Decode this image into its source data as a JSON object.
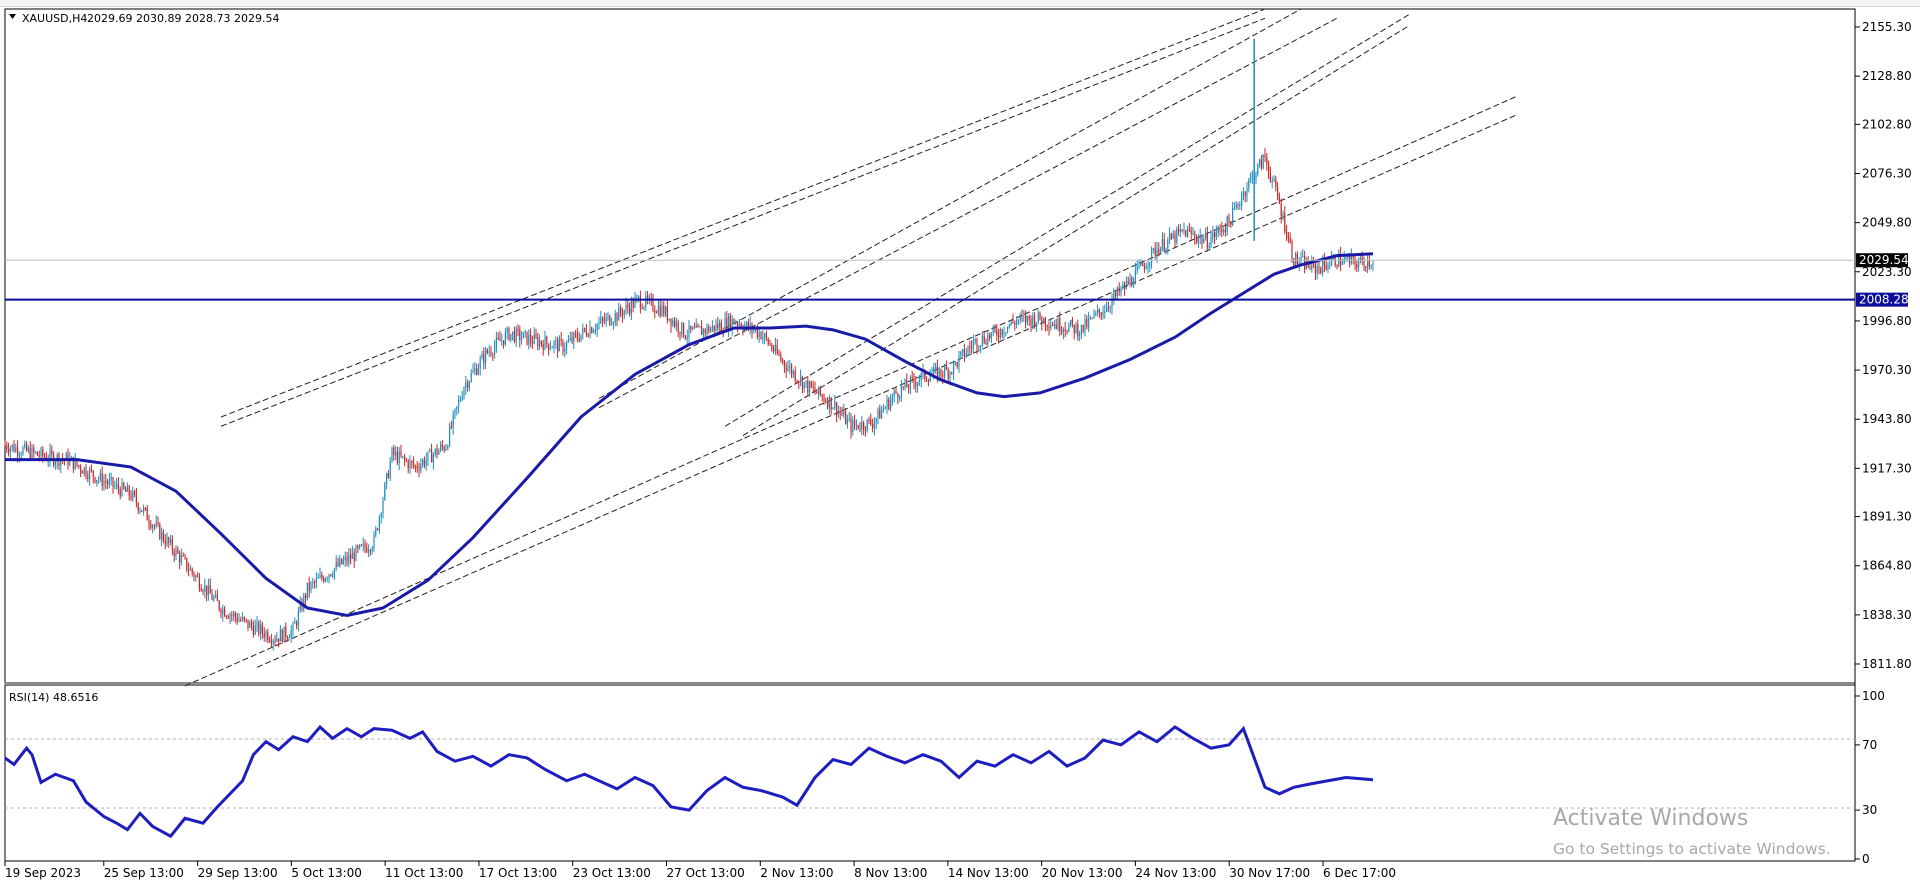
{
  "chart_data": [
    {
      "type": "candlestick",
      "title": "XAUUSD,H4",
      "ohlc_label": "2029.69 2030.89 2028.73 2029.54",
      "ylim": [
        1800,
        2160
      ],
      "y_ticks": [
        "2155.30",
        "2128.80",
        "2102.80",
        "2076.30",
        "2049.80",
        "2023.30",
        "1996.80",
        "1970.30",
        "1943.80",
        "1917.30",
        "1891.30",
        "1864.80",
        "1838.30",
        "1811.80"
      ],
      "x_ticks": [
        "19 Sep 2023",
        "25 Sep 13:00",
        "29 Sep 13:00",
        "5 Oct 13:00",
        "11 Oct 13:00",
        "17 Oct 13:00",
        "23 Oct 13:00",
        "27 Oct 13:00",
        "2 Nov 13:00",
        "8 Nov 13:00",
        "14 Nov 13:00",
        "20 Nov 13:00",
        "24 Nov 13:00",
        "30 Nov 17:00",
        "6 Dec 17:00"
      ],
      "current_price": "2029.54",
      "horizontal_level": "2008.28",
      "series_points": [
        {
          "x": 0,
          "y": 1930
        },
        {
          "x": 20,
          "y": 1924
        },
        {
          "x": 35,
          "y": 1922
        },
        {
          "x": 52,
          "y": 1912
        },
        {
          "x": 70,
          "y": 1903
        },
        {
          "x": 88,
          "y": 1880
        },
        {
          "x": 105,
          "y": 1860
        },
        {
          "x": 120,
          "y": 1842
        },
        {
          "x": 135,
          "y": 1833
        },
        {
          "x": 150,
          "y": 1826
        },
        {
          "x": 160,
          "y": 1830
        },
        {
          "x": 168,
          "y": 1852
        },
        {
          "x": 178,
          "y": 1860
        },
        {
          "x": 190,
          "y": 1868
        },
        {
          "x": 205,
          "y": 1878
        },
        {
          "x": 215,
          "y": 1925
        },
        {
          "x": 228,
          "y": 1918
        },
        {
          "x": 245,
          "y": 1930
        },
        {
          "x": 255,
          "y": 1962
        },
        {
          "x": 268,
          "y": 1980
        },
        {
          "x": 280,
          "y": 1990
        },
        {
          "x": 295,
          "y": 1986
        },
        {
          "x": 310,
          "y": 1983
        },
        {
          "x": 325,
          "y": 1993
        },
        {
          "x": 340,
          "y": 2000
        },
        {
          "x": 352,
          "y": 2008
        },
        {
          "x": 365,
          "y": 2003
        },
        {
          "x": 378,
          "y": 1990
        },
        {
          "x": 390,
          "y": 1992
        },
        {
          "x": 405,
          "y": 1997
        },
        {
          "x": 420,
          "y": 1990
        },
        {
          "x": 432,
          "y": 1975
        },
        {
          "x": 445,
          "y": 1962
        },
        {
          "x": 460,
          "y": 1952
        },
        {
          "x": 470,
          "y": 1940
        },
        {
          "x": 482,
          "y": 1942
        },
        {
          "x": 495,
          "y": 1958
        },
        {
          "x": 510,
          "y": 1967
        },
        {
          "x": 525,
          "y": 1970
        },
        {
          "x": 538,
          "y": 1985
        },
        {
          "x": 550,
          "y": 1990
        },
        {
          "x": 562,
          "y": 1997
        },
        {
          "x": 575,
          "y": 1998
        },
        {
          "x": 585,
          "y": 1995
        },
        {
          "x": 598,
          "y": 1992
        },
        {
          "x": 612,
          "y": 2005
        },
        {
          "x": 625,
          "y": 2018
        },
        {
          "x": 640,
          "y": 2036
        },
        {
          "x": 655,
          "y": 2045
        },
        {
          "x": 668,
          "y": 2040
        },
        {
          "x": 680,
          "y": 2050
        },
        {
          "x": 690,
          "y": 2070
        },
        {
          "x": 700,
          "y": 2085
        },
        {
          "x": 708,
          "y": 2060
        },
        {
          "x": 716,
          "y": 2030
        },
        {
          "x": 728,
          "y": 2025
        },
        {
          "x": 740,
          "y": 2030
        },
        {
          "x": 752,
          "y": 2028
        },
        {
          "x": 760,
          "y": 2029.54
        }
      ],
      "moving_average": [
        {
          "x": 0,
          "y": 1922
        },
        {
          "x": 40,
          "y": 1922
        },
        {
          "x": 70,
          "y": 1918
        },
        {
          "x": 95,
          "y": 1905
        },
        {
          "x": 120,
          "y": 1882
        },
        {
          "x": 145,
          "y": 1858
        },
        {
          "x": 168,
          "y": 1842
        },
        {
          "x": 190,
          "y": 1838
        },
        {
          "x": 210,
          "y": 1842
        },
        {
          "x": 235,
          "y": 1857
        },
        {
          "x": 260,
          "y": 1880
        },
        {
          "x": 290,
          "y": 1912
        },
        {
          "x": 320,
          "y": 1945
        },
        {
          "x": 350,
          "y": 1968
        },
        {
          "x": 380,
          "y": 1984
        },
        {
          "x": 405,
          "y": 1993
        },
        {
          "x": 425,
          "y": 1993
        },
        {
          "x": 445,
          "y": 1994
        },
        {
          "x": 460,
          "y": 1992
        },
        {
          "x": 478,
          "y": 1987
        },
        {
          "x": 500,
          "y": 1975
        },
        {
          "x": 520,
          "y": 1965
        },
        {
          "x": 540,
          "y": 1958
        },
        {
          "x": 555,
          "y": 1956
        },
        {
          "x": 575,
          "y": 1958
        },
        {
          "x": 600,
          "y": 1966
        },
        {
          "x": 625,
          "y": 1976
        },
        {
          "x": 650,
          "y": 1988
        },
        {
          "x": 670,
          "y": 2001
        },
        {
          "x": 690,
          "y": 2013
        },
        {
          "x": 705,
          "y": 2022
        },
        {
          "x": 720,
          "y": 2027
        },
        {
          "x": 740,
          "y": 2032
        },
        {
          "x": 760,
          "y": 2033
        }
      ]
    },
    {
      "type": "line",
      "title": "RSI(14) 48.6516",
      "ylim": [
        0,
        100
      ],
      "y_ticks": [
        "100",
        "70",
        "30",
        "0"
      ],
      "levels": [
        70,
        30
      ],
      "rsi_values": [
        {
          "x": 0,
          "y": 62
        },
        {
          "x": 5,
          "y": 58
        },
        {
          "x": 12,
          "y": 68
        },
        {
          "x": 15,
          "y": 64
        },
        {
          "x": 20,
          "y": 47
        },
        {
          "x": 28,
          "y": 52
        },
        {
          "x": 38,
          "y": 48
        },
        {
          "x": 45,
          "y": 35
        },
        {
          "x": 55,
          "y": 26
        },
        {
          "x": 62,
          "y": 22
        },
        {
          "x": 68,
          "y": 18
        },
        {
          "x": 75,
          "y": 28
        },
        {
          "x": 82,
          "y": 20
        },
        {
          "x": 92,
          "y": 14
        },
        {
          "x": 100,
          "y": 25
        },
        {
          "x": 110,
          "y": 22
        },
        {
          "x": 118,
          "y": 32
        },
        {
          "x": 125,
          "y": 40
        },
        {
          "x": 132,
          "y": 48
        },
        {
          "x": 138,
          "y": 64
        },
        {
          "x": 145,
          "y": 72
        },
        {
          "x": 152,
          "y": 67
        },
        {
          "x": 160,
          "y": 75
        },
        {
          "x": 168,
          "y": 72
        },
        {
          "x": 175,
          "y": 81
        },
        {
          "x": 182,
          "y": 74
        },
        {
          "x": 190,
          "y": 80
        },
        {
          "x": 198,
          "y": 75
        },
        {
          "x": 205,
          "y": 80
        },
        {
          "x": 215,
          "y": 79
        },
        {
          "x": 225,
          "y": 74
        },
        {
          "x": 232,
          "y": 78
        },
        {
          "x": 240,
          "y": 66
        },
        {
          "x": 250,
          "y": 60
        },
        {
          "x": 260,
          "y": 63
        },
        {
          "x": 270,
          "y": 57
        },
        {
          "x": 280,
          "y": 64
        },
        {
          "x": 290,
          "y": 62
        },
        {
          "x": 300,
          "y": 55
        },
        {
          "x": 312,
          "y": 48
        },
        {
          "x": 322,
          "y": 52
        },
        {
          "x": 330,
          "y": 48
        },
        {
          "x": 340,
          "y": 43
        },
        {
          "x": 350,
          "y": 50
        },
        {
          "x": 360,
          "y": 45
        },
        {
          "x": 370,
          "y": 32
        },
        {
          "x": 380,
          "y": 30
        },
        {
          "x": 390,
          "y": 42
        },
        {
          "x": 400,
          "y": 50
        },
        {
          "x": 410,
          "y": 44
        },
        {
          "x": 420,
          "y": 42
        },
        {
          "x": 432,
          "y": 38
        },
        {
          "x": 440,
          "y": 33
        },
        {
          "x": 450,
          "y": 50
        },
        {
          "x": 460,
          "y": 61
        },
        {
          "x": 470,
          "y": 58
        },
        {
          "x": 480,
          "y": 68
        },
        {
          "x": 490,
          "y": 63
        },
        {
          "x": 500,
          "y": 59
        },
        {
          "x": 510,
          "y": 64
        },
        {
          "x": 520,
          "y": 60
        },
        {
          "x": 530,
          "y": 50
        },
        {
          "x": 540,
          "y": 60
        },
        {
          "x": 550,
          "y": 57
        },
        {
          "x": 560,
          "y": 64
        },
        {
          "x": 570,
          "y": 59
        },
        {
          "x": 580,
          "y": 66
        },
        {
          "x": 590,
          "y": 57
        },
        {
          "x": 600,
          "y": 62
        },
        {
          "x": 610,
          "y": 73
        },
        {
          "x": 620,
          "y": 70
        },
        {
          "x": 630,
          "y": 78
        },
        {
          "x": 640,
          "y": 72
        },
        {
          "x": 650,
          "y": 81
        },
        {
          "x": 660,
          "y": 74
        },
        {
          "x": 670,
          "y": 68
        },
        {
          "x": 680,
          "y": 70
        },
        {
          "x": 688,
          "y": 80
        },
        {
          "x": 694,
          "y": 62
        },
        {
          "x": 700,
          "y": 44
        },
        {
          "x": 708,
          "y": 40
        },
        {
          "x": 716,
          "y": 44
        },
        {
          "x": 725,
          "y": 46
        },
        {
          "x": 735,
          "y": 48
        },
        {
          "x": 745,
          "y": 50
        },
        {
          "x": 760,
          "y": 48.6516
        }
      ]
    }
  ],
  "watermark": {
    "title": "Activate Windows",
    "subtitle": "Go to Settings to activate Windows."
  },
  "colors": {
    "bull": "#1e8fbf",
    "bear": "#c62828",
    "ma_line": "#1a1aa8",
    "rsi_line": "#1e1ec0",
    "level_line": "#0d0d9c",
    "level_label_bg": "#0d0d9c",
    "grid": "#cfcfcf",
    "trendline": "#202020"
  }
}
